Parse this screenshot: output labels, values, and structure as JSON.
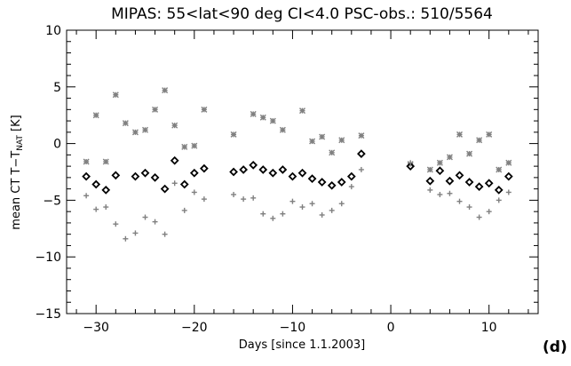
{
  "chart_data": {
    "type": "scatter",
    "title": "MIPAS: 55<lat<90 deg   CI<4.0   PSC-obs.: 510/5564",
    "xlabel": "Days [since 1.1.2003]",
    "ylabel": "mean CT T−T",
    "ylabel_subscript": "NAT",
    "ylabel_unit": " [K]",
    "panel_label": "(d)",
    "xlim": [
      -33,
      15
    ],
    "ylim": [
      -15,
      10
    ],
    "x_ticks": [
      -30,
      -20,
      -10,
      0,
      10
    ],
    "x_tick_labels": [
      "−30",
      "−20",
      "−10",
      "0",
      "10"
    ],
    "y_ticks": [
      -15,
      -10,
      -5,
      0,
      5,
      10
    ],
    "y_tick_labels": [
      "−15",
      "−10",
      "−5",
      "0",
      "5",
      "10"
    ],
    "grid": false,
    "series": [
      {
        "marker": "asterisk",
        "color": "#808080",
        "x": [
          -31,
          -30,
          -29,
          -28,
          -27,
          -26,
          -25,
          -24,
          -23,
          -22,
          -21,
          -20,
          -19,
          -16,
          -14,
          -13,
          -12,
          -11,
          -9,
          -8,
          -7,
          -6,
          -5,
          -3,
          2,
          4,
          5,
          6,
          7,
          8,
          9,
          10,
          11,
          12
        ],
        "y": [
          -1.6,
          2.5,
          -1.6,
          4.3,
          1.8,
          1.0,
          1.2,
          3.0,
          4.7,
          1.6,
          -0.3,
          -0.2,
          3.0,
          0.8,
          2.6,
          2.3,
          2.0,
          1.2,
          2.9,
          0.2,
          0.6,
          -0.8,
          0.3,
          0.7,
          -1.8,
          -2.3,
          -1.7,
          -1.2,
          0.8,
          -0.9,
          0.3,
          0.8,
          -2.3,
          -1.7
        ]
      },
      {
        "marker": "diamond",
        "color": "#000000",
        "x": [
          -31,
          -30,
          -29,
          -28,
          -26,
          -25,
          -24,
          -23,
          -22,
          -21,
          -20,
          -19,
          -16,
          -15,
          -14,
          -13,
          -12,
          -11,
          -10,
          -9,
          -8,
          -7,
          -6,
          -5,
          -4,
          -3,
          2,
          4,
          5,
          6,
          7,
          8,
          9,
          10,
          11,
          12
        ],
        "y": [
          -2.9,
          -3.6,
          -4.1,
          -2.8,
          -2.9,
          -2.6,
          -3.0,
          -4.0,
          -1.5,
          -3.6,
          -2.6,
          -2.2,
          -2.5,
          -2.3,
          -1.9,
          -2.3,
          -2.6,
          -2.3,
          -2.9,
          -2.6,
          -3.1,
          -3.4,
          -3.7,
          -3.4,
          -2.9,
          -0.9,
          -2.0,
          -3.3,
          -2.4,
          -3.3,
          -2.8,
          -3.4,
          -3.8,
          -3.5,
          -4.1,
          -2.9
        ]
      },
      {
        "marker": "plus",
        "color": "#808080",
        "x": [
          -31,
          -30,
          -29,
          -28,
          -27,
          -26,
          -25,
          -24,
          -23,
          -22,
          -21,
          -20,
          -19,
          -16,
          -15,
          -14,
          -13,
          -12,
          -11,
          -10,
          -9,
          -8,
          -7,
          -6,
          -5,
          -4,
          -3,
          2,
          4,
          5,
          6,
          7,
          8,
          9,
          10,
          11,
          12
        ],
        "y": [
          -4.6,
          -5.8,
          -5.6,
          -7.1,
          -8.4,
          -7.9,
          -6.5,
          -6.9,
          -8.0,
          -3.5,
          -5.9,
          -4.3,
          -4.9,
          -4.5,
          -4.9,
          -4.8,
          -6.2,
          -6.6,
          -6.2,
          -5.1,
          -5.6,
          -5.3,
          -6.3,
          -5.9,
          -5.3,
          -3.8,
          -2.3,
          -1.7,
          -4.1,
          -4.5,
          -4.4,
          -5.1,
          -5.6,
          -6.5,
          -6.0,
          -5.0,
          -4.3
        ]
      }
    ]
  }
}
